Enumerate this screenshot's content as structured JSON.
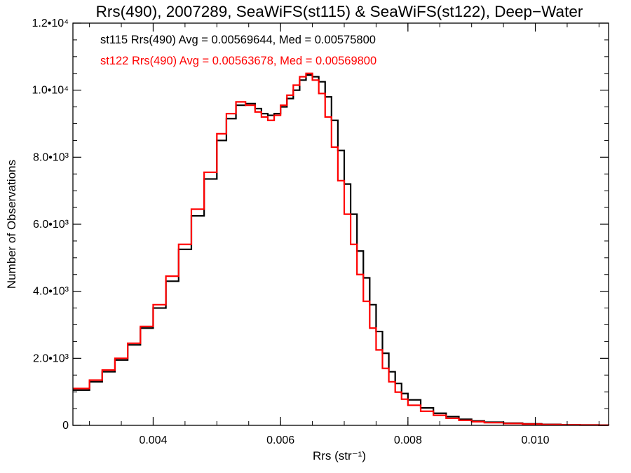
{
  "chart_data": {
    "type": "line",
    "title": "Rrs(490), 2007289, SeaWiFS(st115) & SeaWiFS(st122), Deep−Water",
    "xlabel": "Rrs (str⁻¹)",
    "ylabel": "Number of Observations",
    "xlim": [
      0.00274,
      0.01115
    ],
    "ylim": [
      0,
      12000
    ],
    "x_ticks": [
      {
        "value": 0.004,
        "label": "0.004"
      },
      {
        "value": 0.006,
        "label": "0.006"
      },
      {
        "value": 0.008,
        "label": "0.008"
      },
      {
        "value": 0.01,
        "label": "0.010"
      }
    ],
    "y_ticks": [
      {
        "value": 0,
        "label": "0"
      },
      {
        "value": 2000,
        "label": "2.0•10³"
      },
      {
        "value": 4000,
        "label": "4.0•10³"
      },
      {
        "value": 6000,
        "label": "6.0•10³"
      },
      {
        "value": 8000,
        "label": "8.0•10³"
      },
      {
        "value": 10000,
        "label": "1.0•10⁴"
      },
      {
        "value": 12000,
        "label": "1.2•10⁴"
      }
    ],
    "grid": false,
    "legend_position": "top-left",
    "annotations": [
      {
        "text": "st115 Rrs(490) Avg = 0.00569644, Med = 0.00575800",
        "color": "#000000"
      },
      {
        "text": "st122 Rrs(490) Avg = 0.00563678, Med = 0.00569800",
        "color": "#ff0000"
      }
    ],
    "series": [
      {
        "color": "#000000",
        "style": "step",
        "x": [
          0.00274,
          0.003,
          0.0032,
          0.0034,
          0.0036,
          0.0038,
          0.004,
          0.0042,
          0.0044,
          0.0046,
          0.0048,
          0.005,
          0.00515,
          0.0053,
          0.00545,
          0.0056,
          0.0057,
          0.0058,
          0.0059,
          0.006,
          0.0061,
          0.0062,
          0.0063,
          0.0064,
          0.0065,
          0.0066,
          0.0067,
          0.0068,
          0.0069,
          0.007,
          0.0071,
          0.0072,
          0.0073,
          0.0074,
          0.0075,
          0.0076,
          0.0077,
          0.0078,
          0.0079,
          0.008,
          0.0082,
          0.0084,
          0.0086,
          0.0088,
          0.009,
          0.0092,
          0.0095,
          0.0098,
          0.0101,
          0.0104,
          0.0107,
          0.011,
          0.01115
        ],
        "y": [
          1050,
          1300,
          1600,
          1950,
          2400,
          2900,
          3500,
          4300,
          5250,
          6250,
          7350,
          8500,
          9150,
          9550,
          9600,
          9450,
          9300,
          9250,
          9300,
          9500,
          9750,
          10000,
          10300,
          10450,
          10400,
          10250,
          9800,
          9100,
          8200,
          7200,
          6300,
          5200,
          4400,
          3600,
          2800,
          2150,
          1600,
          1250,
          950,
          760,
          520,
          360,
          260,
          180,
          130,
          95,
          65,
          45,
          30,
          18,
          12,
          6,
          5
        ]
      },
      {
        "color": "#ff0000",
        "style": "step",
        "x": [
          0.00274,
          0.003,
          0.0032,
          0.0034,
          0.0036,
          0.0038,
          0.004,
          0.0042,
          0.0044,
          0.0046,
          0.0048,
          0.005,
          0.00515,
          0.0053,
          0.00545,
          0.0056,
          0.0057,
          0.0058,
          0.0059,
          0.006,
          0.0061,
          0.0062,
          0.0063,
          0.0064,
          0.0065,
          0.0066,
          0.0067,
          0.0068,
          0.0069,
          0.007,
          0.0071,
          0.0072,
          0.0073,
          0.0074,
          0.0075,
          0.0076,
          0.0077,
          0.0078,
          0.0079,
          0.008,
          0.0082,
          0.0084,
          0.0086,
          0.0088,
          0.009,
          0.0092,
          0.0095,
          0.0098,
          0.0101,
          0.0104,
          0.0107,
          0.011,
          0.01115
        ],
        "y": [
          1100,
          1350,
          1650,
          2000,
          2450,
          2950,
          3600,
          4450,
          5400,
          6450,
          7550,
          8700,
          9300,
          9650,
          9550,
          9350,
          9200,
          9100,
          9250,
          9550,
          9850,
          10150,
          10400,
          10500,
          10300,
          9900,
          9200,
          8300,
          7300,
          6300,
          5400,
          4500,
          3700,
          2900,
          2250,
          1700,
          1300,
          990,
          780,
          600,
          420,
          300,
          210,
          150,
          110,
          80,
          55,
          38,
          25,
          15,
          10,
          5,
          4
        ]
      }
    ]
  }
}
